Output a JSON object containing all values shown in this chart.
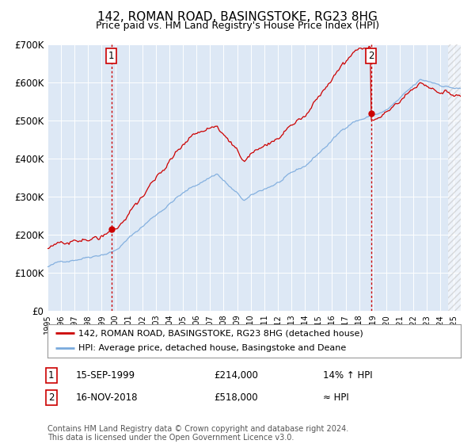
{
  "title": "142, ROMAN ROAD, BASINGSTOKE, RG23 8HG",
  "subtitle": "Price paid vs. HM Land Registry's House Price Index (HPI)",
  "hpi_label": "HPI: Average price, detached house, Basingstoke and Deane",
  "property_label": "142, ROMAN ROAD, BASINGSTOKE, RG23 8HG (detached house)",
  "red_color": "#cc0000",
  "blue_color": "#7aaadd",
  "bg_color": "#dde8f5",
  "white": "#ffffff",
  "annotation1": {
    "num": "1",
    "date": "15-SEP-1999",
    "price": "£214,000",
    "hpi_rel": "14% ↑ HPI",
    "x_year": 1999.71,
    "y_val": 214000
  },
  "annotation2": {
    "num": "2",
    "date": "16-NOV-2018",
    "price": "£518,000",
    "hpi_rel": "≈ HPI",
    "x_year": 2018.88,
    "y_val": 518000
  },
  "ylim": [
    0,
    700000
  ],
  "yticks": [
    0,
    100000,
    200000,
    300000,
    400000,
    500000,
    600000,
    700000
  ],
  "ytick_labels": [
    "£0",
    "£100K",
    "£200K",
    "£300K",
    "£400K",
    "£500K",
    "£600K",
    "£700K"
  ],
  "footer": "Contains HM Land Registry data © Crown copyright and database right 2024.\nThis data is licensed under the Open Government Licence v3.0.",
  "hatch_start": 2024.58,
  "xlim_start": 1995.0,
  "xlim_end": 2025.5
}
